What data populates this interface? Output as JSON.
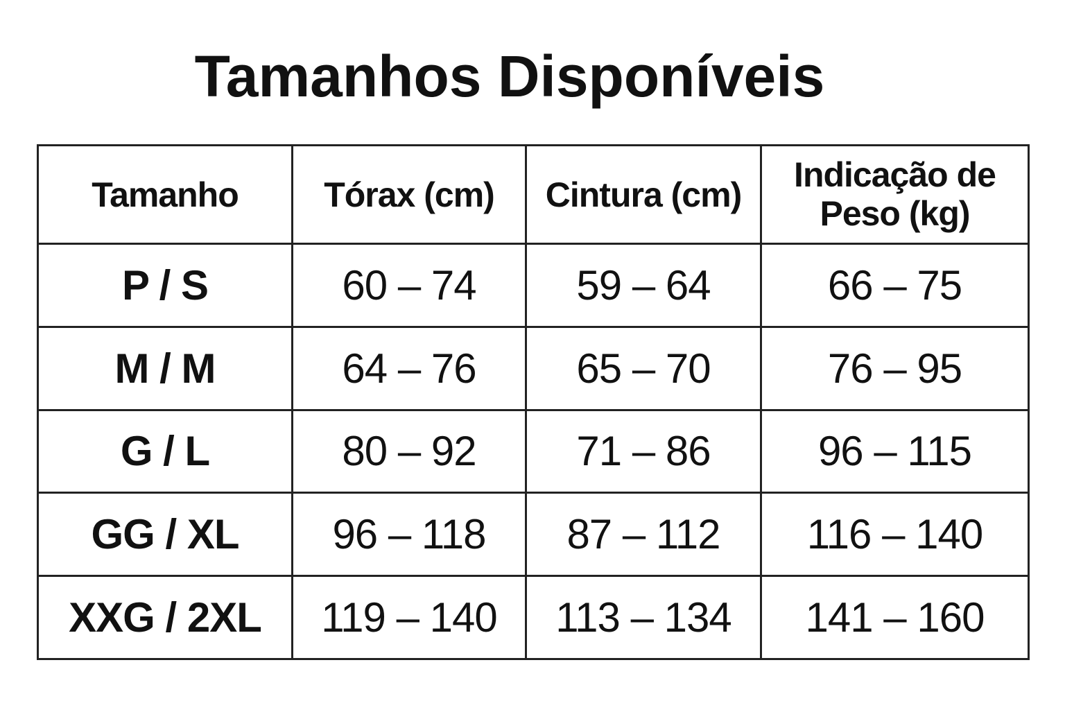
{
  "title": "Tamanhos Disponíveis",
  "table": {
    "header": [
      "Tamanho",
      "Tórax (cm)",
      "Cintura (cm)",
      "Indicação de Peso (kg)"
    ],
    "rows": [
      [
        "P / S",
        "60 – 74",
        "59 – 64",
        "66 – 75"
      ],
      [
        "M / M",
        "64 – 76",
        "65 – 70",
        "76 – 95"
      ],
      [
        "G / L",
        "80 – 92",
        "71 – 86",
        "96 – 115"
      ],
      [
        "GG / XL",
        "96 – 118",
        "87 – 112",
        "116 – 140"
      ],
      [
        "XXG / 2XL",
        "119 – 140",
        "113 – 134",
        "141 – 160"
      ]
    ]
  }
}
